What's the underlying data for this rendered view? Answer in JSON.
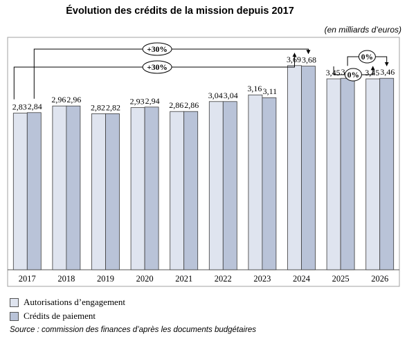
{
  "title": "Évolution des crédits de la mission depuis 2017",
  "unit_note": "(en milliards d’euros)",
  "source": "Source : commission des finances d’après les documents budgétaires",
  "colors": {
    "ae": "#dfe4ef",
    "cp": "#b9c3d8",
    "stroke": "#3a3a3a",
    "frame": "#a0a0a0"
  },
  "chart_data": {
    "type": "bar",
    "categories": [
      "2017",
      "2018",
      "2019",
      "2020",
      "2021",
      "2022",
      "2023",
      "2024",
      "2025",
      "2026"
    ],
    "series": [
      {
        "name": "Autorisations d’engagement",
        "values": [
          2.83,
          2.96,
          2.82,
          2.93,
          2.86,
          3.04,
          3.16,
          3.69,
          3.45,
          3.45
        ],
        "labels": [
          "2,83",
          "2,96",
          "2,82",
          "2,93",
          "2,86",
          "3,04",
          "3,16",
          "3,69",
          "3,45",
          "3,45"
        ]
      },
      {
        "name": "Crédits de paiement",
        "values": [
          2.84,
          2.96,
          2.82,
          2.94,
          2.86,
          3.04,
          3.11,
          3.68,
          3.46,
          3.46
        ],
        "labels": [
          "2,84",
          "2,96",
          "2,82",
          "2,94",
          "2,86",
          "3,04",
          "3,11",
          "3,68",
          "3,46",
          "3,46"
        ]
      }
    ],
    "ylim": [
      0,
      4.2
    ],
    "annotations": [
      {
        "text": "+30%",
        "from": "2017",
        "to": "2024",
        "series": "Crédits de paiement"
      },
      {
        "text": "+30%",
        "from": "2017",
        "to": "2024",
        "series": "Autorisations d’engagement"
      },
      {
        "text": "0%",
        "from": "2025",
        "to": "2026",
        "series": "Crédits de paiement"
      },
      {
        "text": "0%",
        "from": "2025",
        "to": "2026",
        "series": "Autorisations d’engagement"
      }
    ]
  }
}
